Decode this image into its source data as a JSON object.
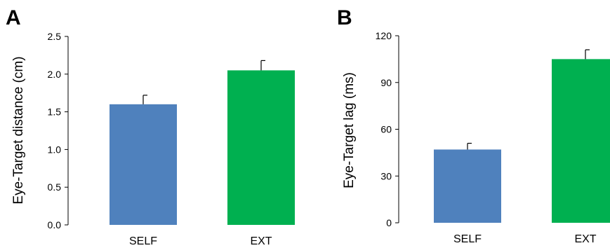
{
  "chart_data": [
    {
      "type": "bar",
      "panel_label": "A",
      "title": "",
      "xlabel": "",
      "ylabel": "Eye-Target distance (cm)",
      "categories": [
        "SELF",
        "EXT"
      ],
      "values": [
        1.6,
        2.05
      ],
      "errors": [
        0.12,
        0.13
      ],
      "colors": [
        "#4f81bd",
        "#00b050"
      ],
      "ylim": [
        0,
        2.5
      ],
      "yticks": [
        0,
        0.5,
        1.0,
        1.5,
        2.0,
        2.5
      ],
      "ytick_labels": [
        "0.0",
        "0.5",
        "1.0",
        "1.5",
        "2.0",
        "2.5"
      ],
      "grid": false,
      "legend": "none"
    },
    {
      "type": "bar",
      "panel_label": "B",
      "title": "",
      "xlabel": "",
      "ylabel": "Eye-Target lag (ms)",
      "categories": [
        "SELF",
        "EXT"
      ],
      "values": [
        47,
        105
      ],
      "errors": [
        4,
        6
      ],
      "colors": [
        "#4f81bd",
        "#00b050"
      ],
      "ylim": [
        0,
        120
      ],
      "yticks": [
        0,
        30,
        60,
        90,
        120
      ],
      "ytick_labels": [
        "0",
        "30",
        "60",
        "90",
        "120"
      ],
      "grid": false,
      "legend": "none"
    }
  ]
}
